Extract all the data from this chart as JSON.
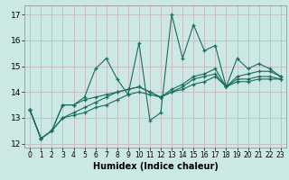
{
  "xlabel": "Humidex (Indice chaleur)",
  "background_color": "#cce8e4",
  "grid_color": "#c8b8c0",
  "line_color": "#1a6b60",
  "xlim": [
    -0.5,
    23.5
  ],
  "ylim": [
    11.85,
    17.35
  ],
  "yticks": [
    12,
    13,
    14,
    15,
    16,
    17
  ],
  "xticks": [
    0,
    1,
    2,
    3,
    4,
    5,
    6,
    7,
    8,
    9,
    10,
    11,
    12,
    13,
    14,
    15,
    16,
    17,
    18,
    19,
    20,
    21,
    22,
    23
  ],
  "series": [
    [
      13.3,
      12.2,
      12.5,
      13.5,
      13.5,
      13.8,
      14.9,
      15.3,
      14.5,
      13.9,
      15.9,
      12.9,
      13.2,
      17.0,
      15.3,
      16.6,
      15.6,
      15.8,
      14.2,
      15.3,
      14.9,
      15.1,
      14.9,
      14.6
    ],
    [
      13.3,
      12.2,
      12.5,
      13.5,
      13.5,
      13.7,
      13.8,
      13.9,
      14.0,
      14.1,
      14.2,
      14.0,
      13.8,
      14.1,
      14.3,
      14.6,
      14.7,
      14.9,
      14.2,
      14.6,
      14.7,
      14.8,
      14.8,
      14.6
    ],
    [
      13.3,
      12.2,
      12.5,
      13.0,
      13.2,
      13.4,
      13.6,
      13.8,
      14.0,
      14.1,
      14.2,
      14.0,
      13.8,
      14.0,
      14.2,
      14.5,
      14.6,
      14.7,
      14.2,
      14.5,
      14.5,
      14.6,
      14.6,
      14.5
    ],
    [
      13.3,
      12.2,
      12.5,
      13.0,
      13.1,
      13.2,
      13.4,
      13.5,
      13.7,
      13.9,
      14.0,
      13.9,
      13.8,
      14.0,
      14.1,
      14.3,
      14.4,
      14.6,
      14.2,
      14.4,
      14.4,
      14.5,
      14.5,
      14.5
    ]
  ]
}
